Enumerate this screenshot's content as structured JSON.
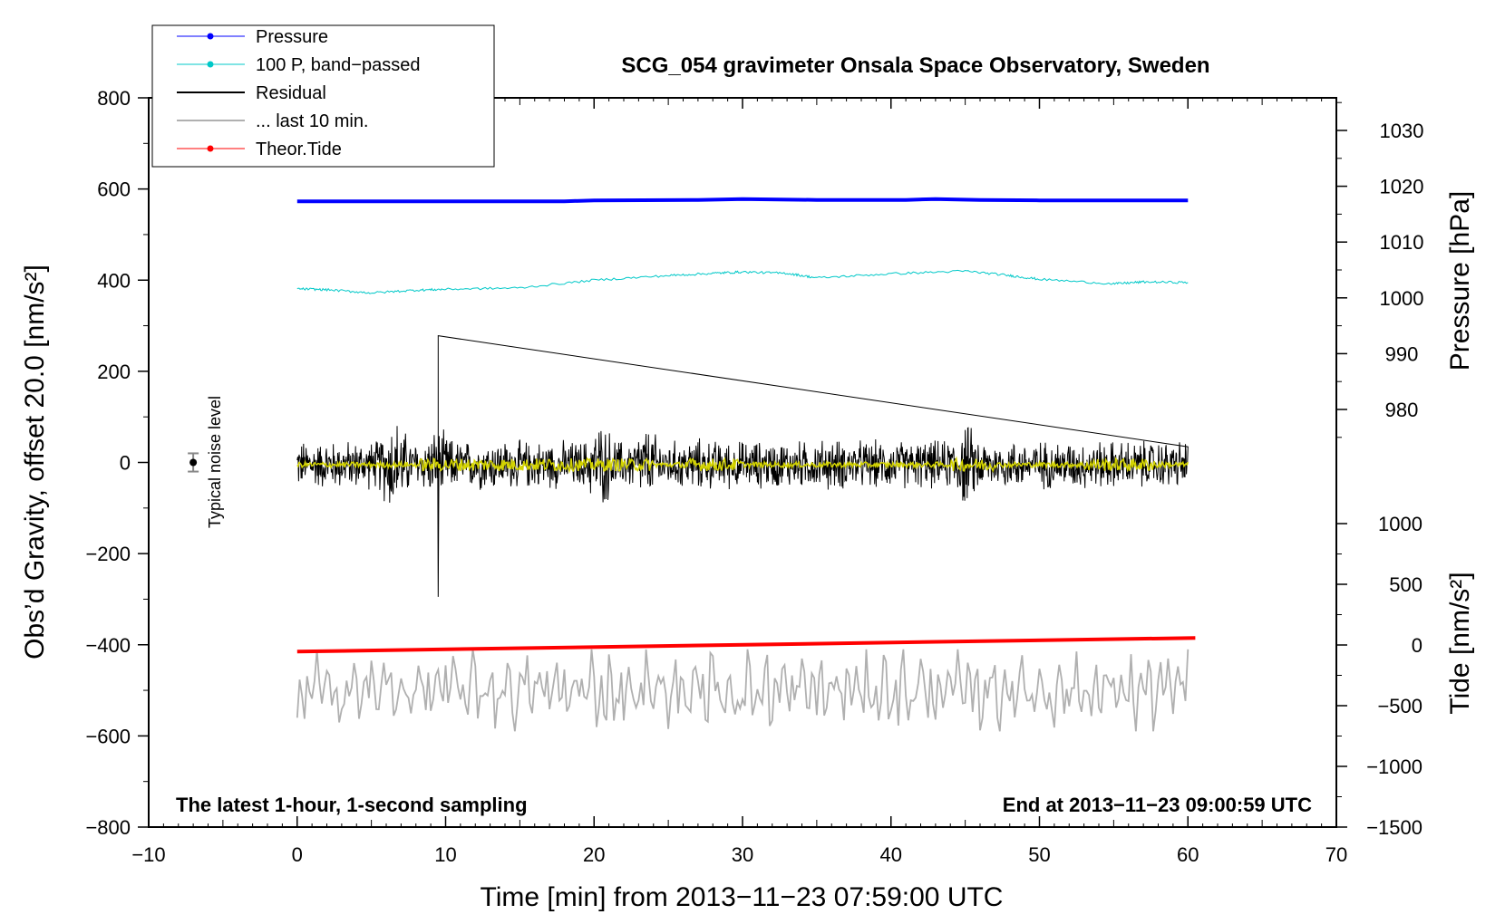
{
  "chart_data": {
    "type": "line",
    "title": "SCG_054 gravimeter Onsala Space Observatory, Sweden",
    "xlabel": "Time [min] from 2013−11−23 07:59:00 UTC",
    "ylabel_left": "Obs’d Gravity, offset 20.0 [nm/s²]",
    "ylabel_right_pressure": "Pressure [hPa]",
    "ylabel_right_tide": "Tide [nm/s²]",
    "xlim": [
      -10,
      70
    ],
    "ylim_left": [
      -800,
      800
    ],
    "x_ticks": [
      "−10",
      "0",
      "10",
      "20",
      "30",
      "40",
      "50",
      "60",
      "70"
    ],
    "y_left_ticks": [
      "800",
      "600",
      "400",
      "200",
      "0",
      "−200",
      "−400",
      "−600",
      "−800"
    ],
    "pressure_ticks": [
      "1030",
      "1020",
      "1010",
      "1000",
      "990",
      "980"
    ],
    "tide_ticks": [
      "1000",
      "500",
      "0",
      "−500",
      "−1000",
      "−1500"
    ],
    "note_left": "The latest 1-hour, 1-second sampling",
    "note_right": "End at 2013−11−23 09:00:59 UTC",
    "noise_label": "Typical noise level",
    "noise_level": {
      "x": -7,
      "y": 0,
      "err": 20
    },
    "legend": [
      {
        "name": "Pressure",
        "color": "#0000ff",
        "marker": true
      },
      {
        "name": "100 P, band−passed",
        "color": "#00c8c8",
        "marker": true
      },
      {
        "name": "Residual",
        "color": "#000000",
        "marker": false
      },
      {
        "name": "... last 10 min.",
        "color": "#b0b0b0",
        "marker": false
      },
      {
        "name": "Theor.Tide",
        "color": "#ff0000",
        "marker": true
      }
    ],
    "series": [
      {
        "name": "Pressure",
        "color": "#0000ff",
        "x": [
          0,
          10,
          18,
          20,
          27,
          30,
          35,
          41,
          43,
          46,
          50,
          60
        ],
        "y": [
          573,
          573,
          573,
          575,
          576,
          578,
          576,
          576,
          578,
          576,
          575,
          575
        ]
      },
      {
        "name": "100 P, band−passed",
        "color": "#00c8c8",
        "x": [
          0,
          2,
          5,
          8,
          10,
          15,
          20,
          25,
          28,
          30,
          33,
          35,
          40,
          45,
          48,
          50,
          55,
          57,
          60
        ],
        "y": [
          381,
          379,
          372,
          378,
          380,
          383,
          400,
          410,
          415,
          418,
          415,
          405,
          414,
          420,
          410,
          402,
          392,
          396,
          395
        ]
      },
      {
        "name": "Residual",
        "color": "#000000",
        "x_range": [
          0,
          60
        ],
        "y_center": -5,
        "y_range": [
          -295,
          278
        ]
      },
      {
        "name": "... last 10 min.",
        "color": "#b0b0b0",
        "x_range": [
          0,
          60
        ],
        "y_range": [
          -590,
          -410
        ]
      },
      {
        "name": "Theor.Tide",
        "color": "#ff0000",
        "x": [
          0,
          60.5
        ],
        "y": [
          -415,
          -385
        ]
      },
      {
        "name": "yellow-trace",
        "color": "#d4d400",
        "x_range": [
          0,
          60
        ],
        "y_center": -5
      }
    ]
  }
}
